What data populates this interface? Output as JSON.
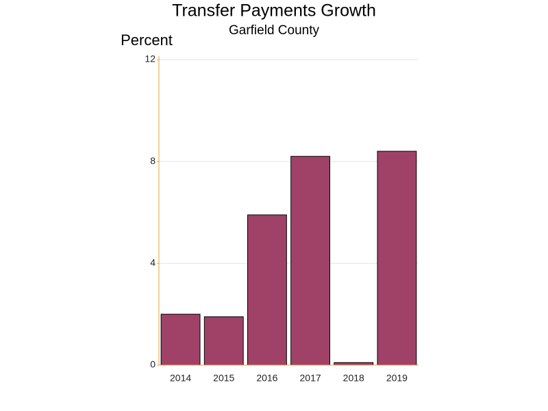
{
  "chart_data": {
    "type": "bar",
    "title": "Transfer Payments Growth",
    "subtitle": "Garfield County",
    "y_label": "Percent",
    "categories": [
      "2014",
      "2015",
      "2016",
      "2017",
      "2018",
      "2019"
    ],
    "values": [
      2.0,
      1.9,
      5.9,
      8.2,
      0.1,
      8.4
    ],
    "color": "#a04268",
    "ylim": [
      0,
      12
    ],
    "yticks": [
      0,
      4,
      8,
      12
    ],
    "grid": true
  }
}
